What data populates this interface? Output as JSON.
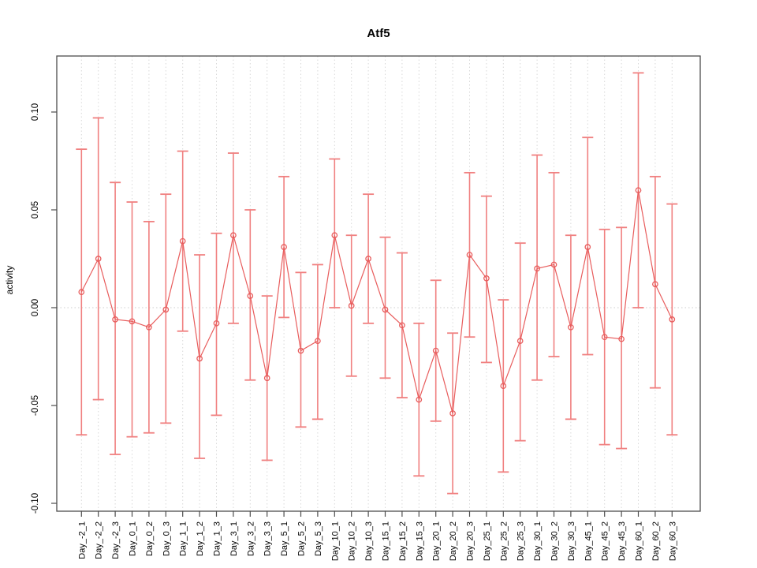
{
  "figure": {
    "title": "Atf5"
  },
  "colors": {
    "marker_line": "#e85d5d",
    "error_bar": "#f08080",
    "grid": "#d9d9d9",
    "zero_line": "#cccccc",
    "axis": "#4d4d4d",
    "text": "#000000"
  },
  "chart_data": {
    "type": "line",
    "title": "Atf5",
    "xlabel": "",
    "ylabel": "activity",
    "legend": null,
    "grid": "dotted vertical gridline at every category; dotted horizontal line at y=0",
    "marker": "open-circle with error bars (caps on both ends)",
    "ylim": [
      -0.104,
      0.129
    ],
    "ytick_values": [
      0.1,
      0.05,
      0.0,
      -0.05,
      -0.1
    ],
    "ytick_labels": [
      "0.10",
      "0.05",
      "0.00",
      "-0.05",
      "-0.10"
    ],
    "categories": [
      "Day_-2_1",
      "Day_-2_2",
      "Day_-2_3",
      "Day_0_1",
      "Day_0_2",
      "Day_0_3",
      "Day_1_1",
      "Day_1_2",
      "Day_1_3",
      "Day_3_1",
      "Day_3_2",
      "Day_3_3",
      "Day_5_1",
      "Day_5_2",
      "Day_5_3",
      "Day_10_1",
      "Day_10_2",
      "Day_10_3",
      "Day_15_1",
      "Day_15_2",
      "Day_15_3",
      "Day_20_1",
      "Day_20_2",
      "Day_20_3",
      "Day_25_1",
      "Day_25_2",
      "Day_25_3",
      "Day_30_1",
      "Day_30_2",
      "Day_30_3",
      "Day_45_1",
      "Day_45_2",
      "Day_45_3",
      "Day_60_1",
      "Day_60_2",
      "Day_60_3"
    ],
    "series": [
      {
        "name": "activity",
        "values": [
          0.008,
          0.025,
          -0.006,
          -0.007,
          -0.01,
          -0.001,
          0.034,
          -0.026,
          -0.008,
          0.037,
          0.006,
          -0.036,
          0.031,
          -0.022,
          -0.017,
          0.037,
          0.001,
          0.025,
          -0.001,
          -0.009,
          -0.047,
          -0.022,
          -0.054,
          0.027,
          0.015,
          -0.04,
          -0.017,
          0.02,
          0.022,
          -0.01,
          0.031,
          -0.015,
          -0.016,
          0.06,
          0.012,
          -0.006
        ],
        "upper": [
          0.081,
          0.097,
          0.064,
          0.054,
          0.044,
          0.058,
          0.08,
          0.027,
          0.038,
          0.079,
          0.05,
          0.006,
          0.067,
          0.018,
          0.022,
          0.076,
          0.037,
          0.058,
          0.036,
          0.028,
          -0.008,
          0.014,
          -0.013,
          0.069,
          0.057,
          0.004,
          0.033,
          0.078,
          0.069,
          0.037,
          0.087,
          0.04,
          0.041,
          0.12,
          0.067,
          0.053
        ],
        "lower": [
          -0.065,
          -0.047,
          -0.075,
          -0.066,
          -0.064,
          -0.059,
          -0.012,
          -0.077,
          -0.055,
          -0.008,
          -0.037,
          -0.078,
          -0.005,
          -0.061,
          -0.057,
          0.0,
          -0.035,
          -0.008,
          -0.036,
          -0.046,
          -0.086,
          -0.058,
          -0.095,
          -0.015,
          -0.028,
          -0.084,
          -0.068,
          -0.037,
          -0.025,
          -0.057,
          -0.024,
          -0.07,
          -0.072,
          0.0,
          -0.041,
          -0.065
        ]
      }
    ]
  }
}
